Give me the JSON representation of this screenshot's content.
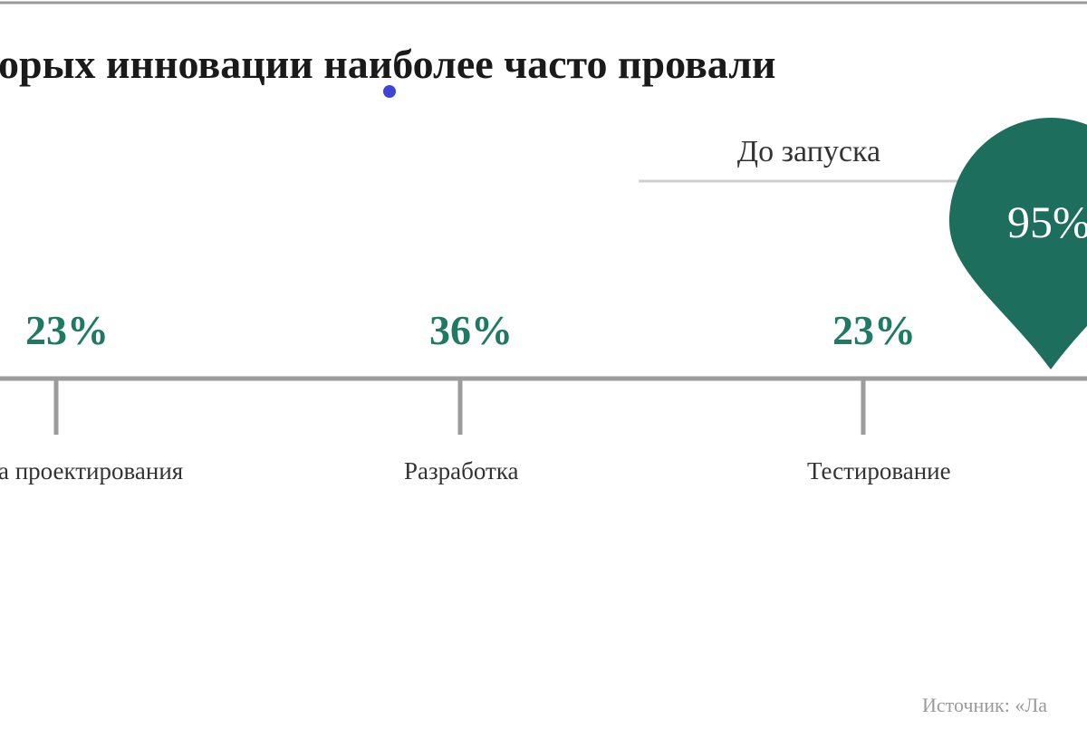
{
  "header": {
    "title": "орых инновации наиболее часто провали"
  },
  "group_label": "До запуска",
  "pin": {
    "label": "95%"
  },
  "stages": [
    {
      "percent": "23%",
      "label": "а проектирования"
    },
    {
      "percent": "36%",
      "label": "Разработка"
    },
    {
      "percent": "23%",
      "label": "Тестирование"
    }
  ],
  "source": "Источник: «Ла"
}
